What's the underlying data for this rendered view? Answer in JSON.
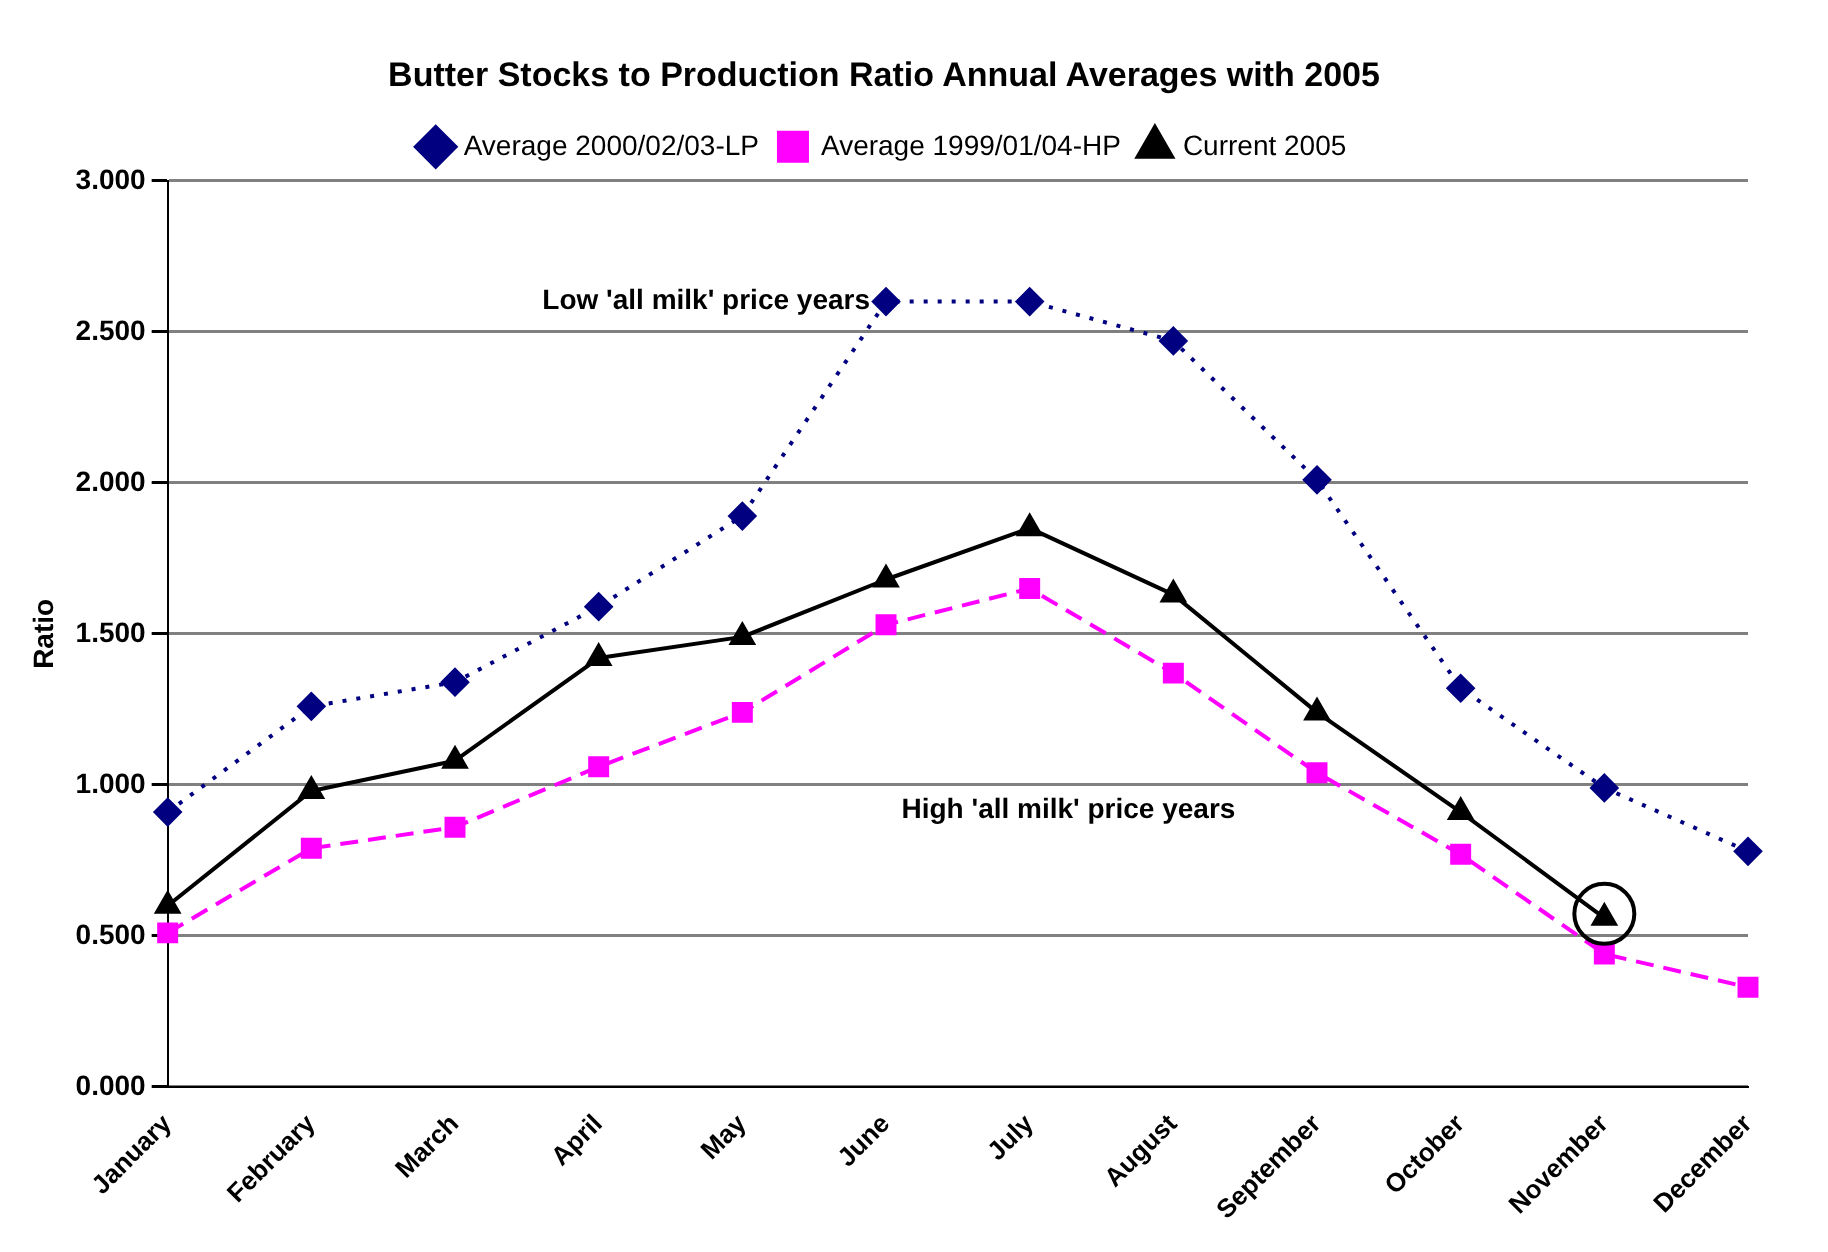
{
  "chart_data": {
    "type": "line",
    "title": "Butter Stocks to Production Ratio Annual Averages with 2005",
    "ylabel": "Ratio",
    "categories": [
      "January",
      "February",
      "March",
      "April",
      "May",
      "June",
      "July",
      "August",
      "September",
      "October",
      "November",
      "December"
    ],
    "series": [
      {
        "name": "Average 2000/02/03-LP",
        "color": "#000080",
        "marker": "diamond",
        "line_style": "dotted",
        "values": [
          0.91,
          1.26,
          1.34,
          1.59,
          1.89,
          2.6,
          2.6,
          2.47,
          2.01,
          1.32,
          0.99,
          0.78
        ]
      },
      {
        "name": "Average 1999/01/04-HP",
        "color": "#ff00ff",
        "marker": "square",
        "line_style": "dashed",
        "values": [
          0.51,
          0.79,
          0.86,
          1.06,
          1.24,
          1.53,
          1.65,
          1.37,
          1.04,
          0.77,
          0.44,
          0.33
        ]
      },
      {
        "name": "Current 2005",
        "color": "#000000",
        "marker": "triangle",
        "line_style": "solid",
        "values": [
          0.6,
          0.98,
          1.08,
          1.42,
          1.49,
          1.68,
          1.85,
          1.63,
          1.24,
          0.91,
          0.56,
          null
        ]
      }
    ],
    "ylim": [
      0,
      3
    ],
    "yticks": [
      {
        "value": 0,
        "label": "0.000"
      },
      {
        "value": 0.5,
        "label": "0.500"
      },
      {
        "value": 1,
        "label": "1.000"
      },
      {
        "value": 1.5,
        "label": "1.500"
      },
      {
        "value": 2,
        "label": "2.000"
      },
      {
        "value": 2.5,
        "label": "2.500"
      },
      {
        "value": 3,
        "label": "3.000"
      }
    ],
    "grid": "y",
    "legend": "top",
    "annotations": [
      {
        "text": "Low 'all milk' price years",
        "x": "June",
        "y": 2.6
      },
      "High 'all milk' price years"
    ]
  }
}
